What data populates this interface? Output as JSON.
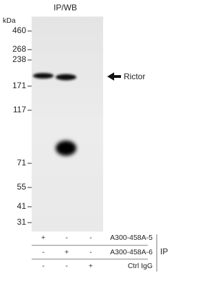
{
  "title": "IP/WB",
  "unit": "kDa",
  "markers": [
    "460",
    "268",
    "238",
    "171",
    "117",
    "71",
    "55",
    "41",
    "31"
  ],
  "target": "Rictor",
  "lanes": {
    "rows": [
      {
        "label": "A300-458A-5",
        "signs": [
          "+",
          "-",
          "-"
        ]
      },
      {
        "label": "A300-458A-6",
        "signs": [
          "-",
          "+",
          "-"
        ]
      },
      {
        "label": "Ctrl IgG",
        "signs": [
          "-",
          "-",
          "+"
        ]
      }
    ],
    "group": "IP"
  }
}
